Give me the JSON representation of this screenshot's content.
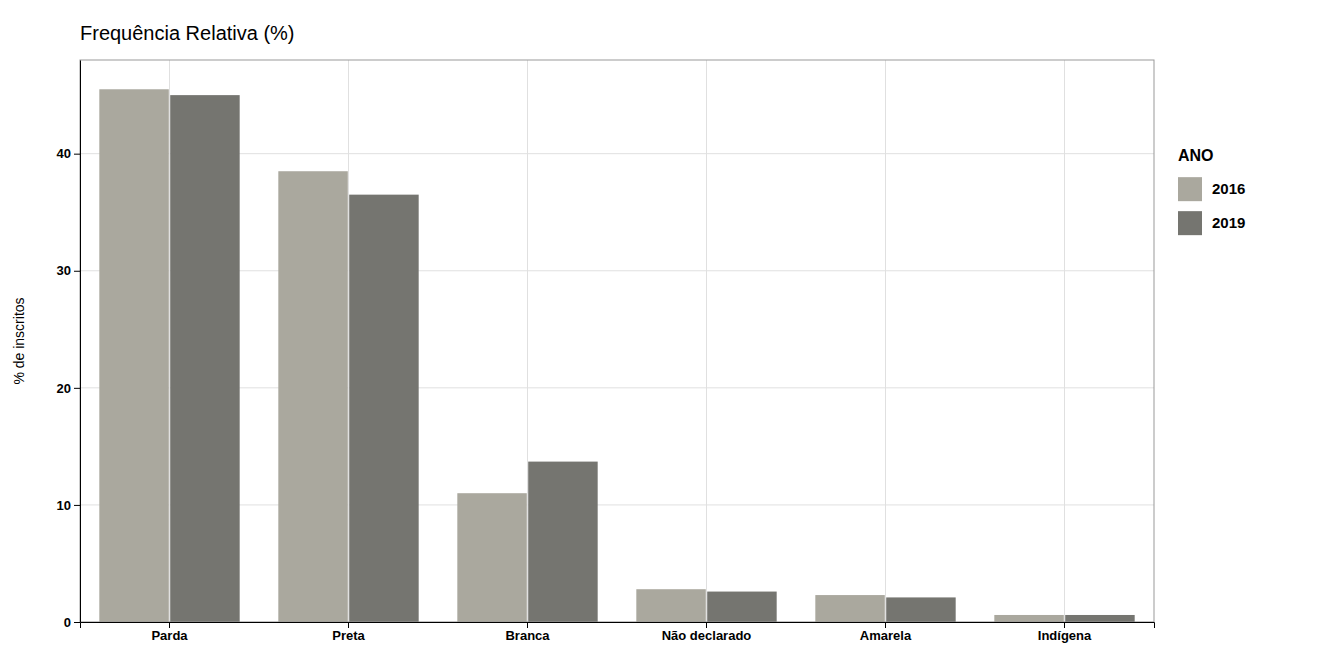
{
  "chart_data": {
    "type": "bar",
    "title": "Frequência Relativa (%)",
    "ylabel": "% de inscritos",
    "legend_title": "ANO",
    "categories": [
      "Parda",
      "Preta",
      "Branca",
      "Não declarado",
      "Amarela",
      "Indígena"
    ],
    "series": [
      {
        "name": "2016",
        "color": "#aaa89e",
        "values": [
          45.5,
          38.5,
          11.0,
          2.8,
          2.3,
          0.6
        ]
      },
      {
        "name": "2019",
        "color": "#757570",
        "values": [
          45.0,
          36.5,
          13.7,
          2.6,
          2.1,
          0.6
        ]
      }
    ],
    "ylim": [
      0,
      48
    ],
    "yticks": [
      0,
      10,
      20,
      30,
      40
    ],
    "grid": true,
    "legend": "right"
  }
}
